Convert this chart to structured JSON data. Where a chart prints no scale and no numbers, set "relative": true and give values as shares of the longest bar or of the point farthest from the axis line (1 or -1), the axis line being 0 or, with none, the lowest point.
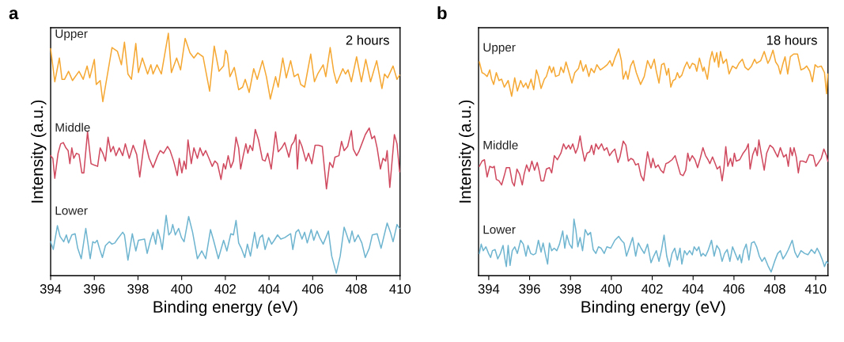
{
  "chart_data": [
    {
      "type": "line",
      "title": "a",
      "xlabel": "Binding energy (eV)",
      "ylabel": "Intensity (a.u.)",
      "relative": true,
      "tick_labels": "x",
      "grid": false,
      "legend": false,
      "marker": "none",
      "line_style": "solid",
      "xlim": [
        394,
        410
      ],
      "xticks": [
        394,
        396,
        398,
        400,
        402,
        404,
        406,
        408,
        410
      ],
      "annotations": [
        "2 hours"
      ],
      "series": [
        {
          "name": "Upper",
          "color": "#f5a833",
          "x": [
            394.0,
            394.19,
            394.4,
            394.52,
            394.64,
            394.82,
            395.0,
            395.3,
            395.49,
            395.67,
            395.79,
            396.0,
            396.09,
            396.27,
            396.39,
            396.81,
            397.06,
            397.24,
            397.38,
            397.54,
            397.7,
            397.9,
            398.02,
            398.2,
            398.44,
            398.59,
            398.69,
            398.87,
            399.07,
            399.39,
            399.53,
            399.77,
            399.95,
            400.16,
            400.38,
            400.56,
            400.74,
            400.98,
            401.28,
            401.49,
            401.71,
            401.92,
            402.01,
            402.09,
            402.21,
            402.41,
            402.61,
            402.79,
            402.91,
            403.09,
            403.3,
            403.46,
            403.7,
            403.88,
            404.06,
            404.3,
            404.42,
            404.63,
            404.79,
            404.99,
            405.15,
            405.33,
            405.45,
            405.63,
            405.91,
            406.08,
            406.23,
            406.48,
            406.6,
            406.8,
            406.96,
            407.1,
            407.38,
            407.5,
            407.62,
            407.77,
            408.01,
            408.23,
            408.43,
            408.65,
            408.93,
            409.17,
            409.29,
            409.43,
            409.68,
            409.86,
            409.98
          ],
          "values": [
            0.936,
            0.8,
            0.898,
            0.81,
            0.81,
            0.843,
            0.805,
            0.843,
            0.81,
            0.865,
            0.816,
            0.892,
            0.789,
            0.805,
            0.718,
            0.941,
            0.925,
            0.87,
            0.963,
            0.832,
            0.81,
            0.958,
            0.838,
            0.898,
            0.832,
            0.87,
            0.832,
            0.87,
            0.832,
            1.0,
            0.838,
            0.898,
            0.849,
            0.979,
            0.919,
            0.898,
            0.919,
            0.903,
            0.761,
            0.947,
            0.843,
            0.865,
            0.93,
            0.914,
            0.821,
            0.859,
            0.767,
            0.778,
            0.81,
            0.756,
            0.854,
            0.81,
            0.887,
            0.821,
            0.729,
            0.821,
            0.778,
            0.898,
            0.816,
            0.887,
            0.821,
            0.832,
            0.789,
            0.778,
            0.914,
            0.8,
            0.832,
            0.87,
            0.821,
            0.941,
            0.843,
            0.794,
            0.854,
            0.832,
            0.849,
            0.8,
            0.903,
            0.8,
            0.892,
            0.8,
            0.887,
            0.772,
            0.832,
            0.816,
            0.865,
            0.81,
            0.827
          ]
        },
        {
          "name": "Middle",
          "color": "#d04a5f",
          "x": [
            394.0,
            394.1,
            394.19,
            394.34,
            394.46,
            394.58,
            394.7,
            394.8,
            394.88,
            394.97,
            395.06,
            395.18,
            395.3,
            395.43,
            395.52,
            395.69,
            395.85,
            396.0,
            396.15,
            396.27,
            396.39,
            396.51,
            396.63,
            396.75,
            396.87,
            396.99,
            397.14,
            397.3,
            397.42,
            397.6,
            397.78,
            397.94,
            398.08,
            398.3,
            398.51,
            398.69,
            398.9,
            399.02,
            399.17,
            399.35,
            399.47,
            399.63,
            399.8,
            399.89,
            400.01,
            400.11,
            400.2,
            400.29,
            400.44,
            400.56,
            400.72,
            400.84,
            400.98,
            401.1,
            401.25,
            401.4,
            401.52,
            401.64,
            401.8,
            401.92,
            402.01,
            402.13,
            402.25,
            402.37,
            402.49,
            402.61,
            402.7,
            402.82,
            402.94,
            403.03,
            403.13,
            403.25,
            403.37,
            403.52,
            403.7,
            403.82,
            403.94,
            404.1,
            404.3,
            404.42,
            404.58,
            404.72,
            404.91,
            405.03,
            405.15,
            405.23,
            405.3,
            405.39,
            405.51,
            405.69,
            405.81,
            405.96,
            406.11,
            406.27,
            406.44,
            406.63,
            406.78,
            406.92,
            407.02,
            407.2,
            407.32,
            407.44,
            407.6,
            407.77,
            407.86,
            408.01,
            408.11,
            408.25,
            408.41,
            408.59,
            408.71,
            408.83,
            408.95,
            409.1,
            409.22,
            409.34,
            409.41,
            409.53,
            409.74,
            409.86,
            409.98
          ],
          "values": [
            0.495,
            0.484,
            0.402,
            0.505,
            0.544,
            0.549,
            0.527,
            0.516,
            0.462,
            0.527,
            0.484,
            0.505,
            0.5,
            0.424,
            0.424,
            0.593,
            0.462,
            0.456,
            0.451,
            0.527,
            0.505,
            0.473,
            0.571,
            0.511,
            0.533,
            0.495,
            0.527,
            0.495,
            0.544,
            0.484,
            0.538,
            0.5,
            0.407,
            0.56,
            0.484,
            0.446,
            0.495,
            0.516,
            0.505,
            0.533,
            0.516,
            0.473,
            0.413,
            0.484,
            0.424,
            0.473,
            0.44,
            0.56,
            0.462,
            0.527,
            0.484,
            0.527,
            0.495,
            0.516,
            0.484,
            0.451,
            0.473,
            0.462,
            0.397,
            0.462,
            0.44,
            0.495,
            0.446,
            0.473,
            0.571,
            0.527,
            0.44,
            0.495,
            0.544,
            0.505,
            0.538,
            0.516,
            0.603,
            0.56,
            0.478,
            0.473,
            0.505,
            0.44,
            0.593,
            0.511,
            0.527,
            0.549,
            0.489,
            0.538,
            0.554,
            0.582,
            0.44,
            0.56,
            0.533,
            0.473,
            0.505,
            0.462,
            0.538,
            0.538,
            0.533,
            0.358,
            0.467,
            0.446,
            0.489,
            0.495,
            0.554,
            0.516,
            0.533,
            0.598,
            0.522,
            0.495,
            0.511,
            0.544,
            0.582,
            0.609,
            0.565,
            0.576,
            0.527,
            0.44,
            0.484,
            0.473,
            0.516,
            0.364,
            0.582,
            0.544,
            0.429
          ]
        },
        {
          "name": "Lower",
          "color": "#6fb5d0",
          "x": [
            394.0,
            394.12,
            394.31,
            394.43,
            394.6,
            394.72,
            394.82,
            394.97,
            395.12,
            395.24,
            395.4,
            395.61,
            395.81,
            395.93,
            396.03,
            396.13,
            396.25,
            396.37,
            396.51,
            396.69,
            396.81,
            396.94,
            397.06,
            397.3,
            397.38,
            397.54,
            397.74,
            397.9,
            398.02,
            398.3,
            398.42,
            398.57,
            398.69,
            398.81,
            398.9,
            399.02,
            399.11,
            399.29,
            399.41,
            399.51,
            399.59,
            399.71,
            399.86,
            399.99,
            400.11,
            400.32,
            400.5,
            400.72,
            400.92,
            401.1,
            401.32,
            401.46,
            401.68,
            401.92,
            402.07,
            402.25,
            402.37,
            402.49,
            402.61,
            402.73,
            402.89,
            403.01,
            403.15,
            403.34,
            403.46,
            403.58,
            403.7,
            403.82,
            403.98,
            404.12,
            404.24,
            404.39,
            404.54,
            404.72,
            404.99,
            405.09,
            405.23,
            405.35,
            405.51,
            405.63,
            405.75,
            405.93,
            406.05,
            406.2,
            406.32,
            406.48,
            406.6,
            406.72,
            406.87,
            407.08,
            407.26,
            407.44,
            407.56,
            407.68,
            407.8,
            407.92,
            408.08,
            408.25,
            408.41,
            408.59,
            408.73,
            408.95,
            409.13,
            409.29,
            409.41,
            409.56,
            409.68,
            409.86,
            409.98
          ],
          "values": [
            0.14,
            0.108,
            0.206,
            0.162,
            0.14,
            0.168,
            0.135,
            0.168,
            0.173,
            0.113,
            0.07,
            0.195,
            0.07,
            0.14,
            0.135,
            0.146,
            0.108,
            0.075,
            0.124,
            0.14,
            0.13,
            0.135,
            0.151,
            0.179,
            0.168,
            0.064,
            0.173,
            0.102,
            0.146,
            0.151,
            0.092,
            0.146,
            0.179,
            0.13,
            0.19,
            0.151,
            0.108,
            0.249,
            0.168,
            0.179,
            0.211,
            0.168,
            0.195,
            0.157,
            0.14,
            0.244,
            0.179,
            0.07,
            0.102,
            0.07,
            0.19,
            0.146,
            0.07,
            0.146,
            0.102,
            0.173,
            0.168,
            0.228,
            0.135,
            0.113,
            0.075,
            0.13,
            0.081,
            0.179,
            0.113,
            0.157,
            0.168,
            0.108,
            0.157,
            0.13,
            0.146,
            0.168,
            0.151,
            0.157,
            0.173,
            0.108,
            0.179,
            0.19,
            0.151,
            0.179,
            0.135,
            0.19,
            0.146,
            0.184,
            0.157,
            0.13,
            0.157,
            0.184,
            0.081,
            0.01,
            0.081,
            0.2,
            0.168,
            0.135,
            0.184,
            0.14,
            0.168,
            0.135,
            0.075,
            0.113,
            0.168,
            0.173,
            0.113,
            0.173,
            0.217,
            0.179,
            0.14,
            0.211,
            0.195
          ]
        }
      ]
    },
    {
      "type": "line",
      "title": "b",
      "xlabel": "Binding energy (eV)",
      "ylabel": "Intensity (a.u.)",
      "relative": true,
      "tick_labels": "x",
      "grid": false,
      "legend": false,
      "marker": "none",
      "line_style": "solid",
      "xlim": [
        393.5,
        410.6
      ],
      "xticks": [
        394,
        396,
        398,
        400,
        402,
        404,
        406,
        408,
        410
      ],
      "annotations": [
        "18 hours"
      ],
      "series": [
        {
          "name": "Upper",
          "color": "#f5a833",
          "x": [
            393.54,
            393.67,
            393.79,
            393.92,
            394.05,
            394.14,
            394.24,
            394.37,
            394.5,
            394.63,
            394.76,
            394.95,
            395.12,
            395.27,
            395.4,
            395.56,
            395.69,
            395.82,
            395.92,
            396.07,
            396.2,
            396.33,
            396.43,
            396.56,
            396.72,
            396.82,
            396.97,
            397.08,
            397.17,
            397.27,
            397.44,
            397.53,
            397.66,
            397.78,
            397.91,
            398.07,
            398.21,
            398.39,
            398.49,
            398.62,
            398.75,
            398.9,
            399.01,
            399.16,
            399.29,
            399.46,
            399.65,
            399.8,
            399.93,
            400.04,
            400.17,
            400.36,
            400.49,
            400.58,
            400.71,
            400.81,
            400.94,
            401.07,
            401.22,
            401.43,
            401.61,
            401.77,
            401.94,
            402.1,
            402.2,
            402.33,
            402.46,
            402.58,
            402.71,
            402.8,
            402.91,
            403.02,
            403.13,
            403.23,
            403.33,
            403.45,
            403.58,
            403.7,
            403.83,
            403.96,
            404.09,
            404.18,
            404.31,
            404.48,
            404.54,
            404.7,
            404.82,
            404.93,
            405.05,
            405.16,
            405.25,
            405.34,
            405.47,
            405.63,
            405.76,
            405.93,
            406.11,
            406.24,
            406.41,
            406.54,
            406.7,
            406.86,
            407.01,
            407.11,
            407.31,
            407.48,
            407.66,
            407.76,
            407.91,
            408.04,
            408.17,
            408.27,
            408.4,
            408.5,
            408.63,
            408.76,
            408.92,
            409.11,
            409.28,
            409.43,
            409.56,
            409.71,
            409.84,
            409.97,
            410.1,
            410.27,
            410.43,
            410.53,
            410.59
          ],
          "values": [
            0.942,
            0.895,
            0.889,
            0.878,
            0.907,
            0.866,
            0.843,
            0.895,
            0.86,
            0.866,
            0.831,
            0.86,
            0.791,
            0.872,
            0.814,
            0.86,
            0.831,
            0.849,
            0.825,
            0.866,
            0.82,
            0.907,
            0.878,
            0.825,
            0.866,
            0.878,
            0.924,
            0.895,
            0.919,
            0.878,
            0.884,
            0.919,
            0.895,
            0.942,
            0.901,
            0.849,
            0.895,
            0.913,
            0.948,
            0.901,
            0.93,
            0.878,
            0.913,
            0.895,
            0.93,
            0.907,
            0.919,
            0.93,
            0.948,
            0.924,
            0.959,
            1.0,
            0.948,
            0.866,
            0.901,
            0.866,
            0.924,
            0.948,
            0.895,
            0.843,
            0.878,
            0.948,
            0.913,
            0.954,
            0.901,
            0.849,
            0.93,
            0.936,
            0.884,
            0.913,
            0.831,
            0.86,
            0.866,
            0.895,
            0.872,
            0.884,
            0.919,
            0.942,
            0.913,
            0.936,
            0.93,
            0.901,
            0.959,
            0.901,
            0.919,
            0.866,
            0.948,
            0.988,
            0.942,
            0.983,
            0.919,
            0.988,
            0.936,
            0.954,
            0.889,
            0.924,
            0.913,
            0.936,
            0.954,
            0.919,
            0.907,
            0.924,
            0.954,
            0.936,
            0.948,
            0.988,
            0.936,
            0.954,
            0.994,
            0.942,
            0.924,
            0.889,
            0.936,
            0.965,
            0.889,
            0.965,
            0.977,
            0.977,
            0.907,
            0.913,
            0.924,
            0.901,
            0.855,
            0.93,
            0.919,
            0.924,
            0.895,
            0.802,
            0.889
          ]
        },
        {
          "name": "Middle",
          "color": "#d04a5f",
          "x": [
            393.54,
            393.67,
            393.79,
            393.92,
            394.05,
            394.18,
            394.27,
            394.37,
            394.5,
            394.63,
            394.76,
            394.86,
            395.02,
            395.15,
            395.25,
            395.38,
            395.51,
            395.64,
            395.73,
            395.85,
            395.98,
            396.11,
            396.24,
            396.37,
            396.46,
            396.56,
            396.69,
            396.82,
            396.97,
            397.08,
            397.21,
            397.36,
            397.53,
            397.66,
            397.78,
            397.91,
            398.0,
            398.11,
            398.25,
            398.36,
            398.47,
            398.56,
            398.69,
            398.81,
            398.94,
            399.03,
            399.14,
            399.24,
            399.37,
            399.52,
            399.65,
            399.78,
            399.91,
            400.04,
            400.17,
            400.32,
            400.42,
            400.58,
            400.71,
            400.83,
            400.96,
            401.07,
            401.19,
            401.32,
            401.45,
            401.58,
            401.77,
            401.94,
            402.03,
            402.16,
            402.29,
            402.42,
            402.55,
            402.67,
            402.8,
            402.97,
            403.12,
            403.25,
            403.38,
            403.51,
            403.64,
            403.74,
            403.83,
            403.96,
            404.09,
            404.22,
            404.35,
            404.48,
            404.61,
            404.73,
            404.82,
            404.95,
            405.06,
            405.18,
            405.31,
            405.42,
            405.51,
            405.6,
            405.7,
            405.83,
            405.93,
            406.02,
            406.11,
            406.28,
            406.45,
            406.6,
            406.7,
            406.79,
            406.92,
            407.05,
            407.14,
            407.22,
            407.35,
            407.48,
            407.6,
            407.76,
            407.91,
            408.04,
            408.14,
            408.27,
            408.43,
            408.56,
            408.66,
            408.76,
            408.85,
            408.94,
            409.05,
            409.15,
            409.24,
            409.37,
            409.53,
            409.69,
            409.88,
            410.01,
            410.14,
            410.27,
            410.4,
            410.53,
            410.59
          ],
          "values": [
            0.482,
            0.505,
            0.511,
            0.435,
            0.482,
            0.476,
            0.482,
            0.424,
            0.418,
            0.4,
            0.441,
            0.476,
            0.476,
            0.412,
            0.395,
            0.47,
            0.447,
            0.4,
            0.447,
            0.488,
            0.459,
            0.505,
            0.465,
            0.499,
            0.465,
            0.418,
            0.418,
            0.47,
            0.476,
            0.453,
            0.529,
            0.511,
            0.54,
            0.581,
            0.558,
            0.575,
            0.558,
            0.581,
            0.54,
            0.564,
            0.616,
            0.564,
            0.505,
            0.54,
            0.546,
            0.575,
            0.534,
            0.581,
            0.558,
            0.581,
            0.552,
            0.564,
            0.529,
            0.546,
            0.558,
            0.499,
            0.523,
            0.593,
            0.575,
            0.505,
            0.517,
            0.511,
            0.488,
            0.494,
            0.441,
            0.418,
            0.546,
            0.476,
            0.517,
            0.476,
            0.488,
            0.465,
            0.453,
            0.494,
            0.499,
            0.511,
            0.529,
            0.488,
            0.447,
            0.441,
            0.465,
            0.54,
            0.505,
            0.529,
            0.511,
            0.476,
            0.517,
            0.564,
            0.529,
            0.511,
            0.494,
            0.523,
            0.499,
            0.47,
            0.482,
            0.418,
            0.476,
            0.569,
            0.482,
            0.517,
            0.482,
            0.54,
            0.505,
            0.511,
            0.54,
            0.558,
            0.581,
            0.47,
            0.534,
            0.564,
            0.529,
            0.598,
            0.529,
            0.465,
            0.54,
            0.575,
            0.564,
            0.54,
            0.523,
            0.564,
            0.523,
            0.534,
            0.482,
            0.564,
            0.529,
            0.564,
            0.523,
            0.453,
            0.505,
            0.505,
            0.499,
            0.534,
            0.529,
            0.482,
            0.499,
            0.517,
            0.558,
            0.529,
            0.505
          ]
        },
        {
          "name": "Lower",
          "color": "#6fb5d0",
          "x": [
            393.54,
            393.63,
            393.73,
            393.86,
            393.99,
            394.09,
            394.18,
            394.31,
            394.44,
            394.57,
            394.7,
            394.79,
            394.86,
            394.95,
            395.04,
            395.15,
            395.27,
            395.4,
            395.56,
            395.69,
            395.82,
            395.92,
            396.05,
            396.18,
            396.3,
            396.43,
            396.56,
            396.66,
            396.79,
            396.88,
            396.97,
            397.08,
            397.2,
            397.33,
            397.46,
            397.62,
            397.72,
            397.82,
            397.95,
            398.08,
            398.17,
            398.26,
            398.36,
            398.47,
            398.59,
            398.72,
            398.85,
            398.98,
            399.11,
            399.24,
            399.37,
            399.5,
            399.65,
            399.78,
            399.97,
            400.17,
            400.36,
            400.49,
            400.62,
            400.74,
            400.87,
            401.04,
            401.19,
            401.32,
            401.45,
            401.61,
            401.77,
            401.94,
            402.07,
            402.2,
            402.33,
            402.46,
            402.58,
            402.71,
            402.84,
            402.97,
            403.1,
            403.23,
            403.36,
            403.45,
            403.58,
            403.7,
            403.83,
            403.96,
            404.05,
            404.18,
            404.28,
            404.39,
            404.48,
            404.61,
            404.73,
            404.9,
            405.03,
            405.16,
            405.29,
            405.42,
            405.54,
            405.67,
            405.8,
            405.93,
            406.06,
            406.19,
            406.28,
            406.37,
            406.47,
            406.6,
            406.73,
            406.86,
            406.99,
            407.11,
            407.24,
            407.37,
            407.5,
            407.66,
            407.82,
            407.99,
            408.14,
            408.27,
            408.4,
            408.53,
            408.66,
            408.85,
            408.98,
            409.11,
            409.28,
            409.46,
            409.62,
            409.79,
            409.95,
            410.07,
            410.2,
            410.33,
            410.43,
            410.53,
            410.59
          ],
          "values": [
            0.098,
            0.139,
            0.11,
            0.127,
            0.098,
            0.08,
            0.11,
            0.115,
            0.074,
            0.098,
            0.133,
            0.074,
            0.04,
            0.133,
            0.045,
            0.11,
            0.127,
            0.098,
            0.156,
            0.139,
            0.086,
            0.133,
            0.098,
            0.092,
            0.098,
            0.156,
            0.104,
            0.144,
            0.086,
            0.051,
            0.144,
            0.11,
            0.121,
            0.11,
            0.139,
            0.197,
            0.121,
            0.179,
            0.139,
            0.121,
            0.249,
            0.203,
            0.127,
            0.168,
            0.11,
            0.203,
            0.179,
            0.191,
            0.115,
            0.098,
            0.127,
            0.121,
            0.098,
            0.127,
            0.121,
            0.156,
            0.173,
            0.156,
            0.144,
            0.086,
            0.121,
            0.168,
            0.086,
            0.144,
            0.121,
            0.098,
            0.139,
            0.057,
            0.086,
            0.11,
            0.063,
            0.115,
            0.179,
            0.086,
            0.04,
            0.098,
            0.121,
            0.069,
            0.121,
            0.051,
            0.11,
            0.092,
            0.11,
            0.092,
            0.127,
            0.11,
            0.127,
            0.086,
            0.098,
            0.086,
            0.11,
            0.156,
            0.086,
            0.133,
            0.115,
            0.063,
            0.098,
            0.115,
            0.063,
            0.127,
            0.098,
            0.069,
            0.092,
            0.057,
            0.11,
            0.139,
            0.069,
            0.144,
            0.15,
            0.127,
            0.086,
            0.063,
            0.08,
            0.045,
            0.016,
            0.063,
            0.098,
            0.11,
            0.074,
            0.092,
            0.115,
            0.156,
            0.104,
            0.08,
            0.11,
            0.098,
            0.092,
            0.115,
            0.098,
            0.121,
            0.098,
            0.069,
            0.04,
            0.063,
            0.057
          ]
        }
      ]
    }
  ]
}
